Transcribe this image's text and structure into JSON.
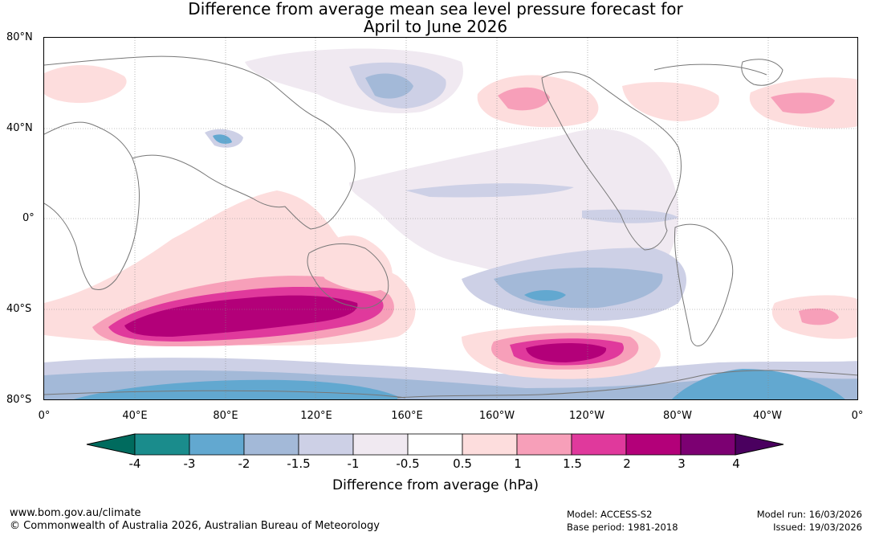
{
  "title_line1": "Difference from average mean sea level pressure forecast for",
  "title_line2": "April to June 2026",
  "lat_labels": [
    "80°N",
    "40°N",
    "0°",
    "40°S",
    "80°S"
  ],
  "lon_labels": [
    "0°",
    "40°E",
    "80°E",
    "120°E",
    "160°E",
    "160°W",
    "120°W",
    "80°W",
    "40°W",
    "0°"
  ],
  "legend": {
    "ticks": [
      "-4",
      "-3",
      "-2",
      "-1.5",
      "-1",
      "-0.5",
      "0.5",
      "1",
      "1.5",
      "2",
      "3",
      "4"
    ],
    "colors": [
      "#1a8c8c",
      "#62a8d0",
      "#a3b9d8",
      "#cdd0e6",
      "#f0e9f1",
      "#ffffff",
      "#fddddd",
      "#f79fb9",
      "#e0399c",
      "#b30079",
      "#7c0072"
    ],
    "low_extend_color": "#006b5e",
    "high_extend_color": "#4a005f",
    "label": "Difference from average (hPa)"
  },
  "footer": {
    "url": "www.bom.gov.au/climate",
    "copyright": "© Commonwealth of Australia 2026, Australian Bureau of Meteorology",
    "model": "Model: ACCESS-S2",
    "base_period": "Base period: 1981-2018",
    "model_run": "Model run: 16/03/2026",
    "issued": "Issued: 19/03/2026"
  }
}
